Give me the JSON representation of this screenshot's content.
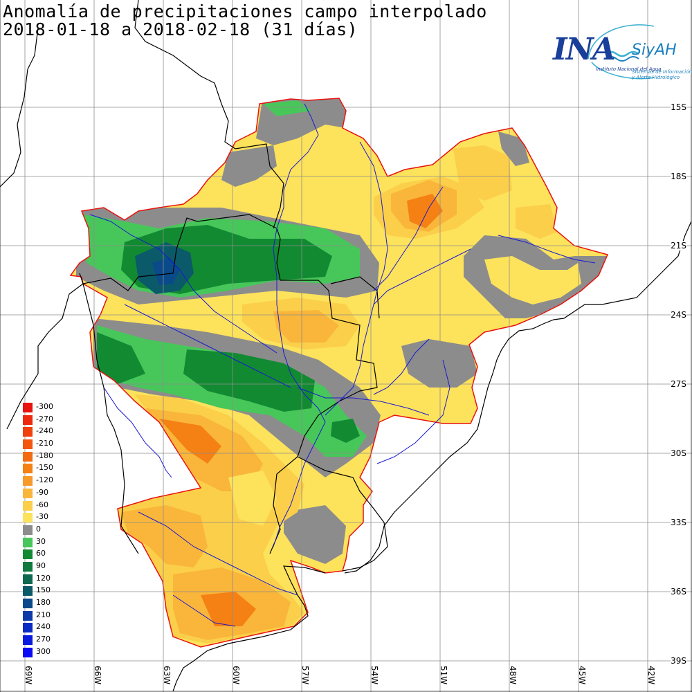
{
  "title": {
    "line1": "Anomalía de precipitaciones campo interpolado",
    "line2": "2018-01-18 a 2018-02-18 (31 días)"
  },
  "logo": {
    "ina": "INA",
    "siyah": "SiyAH",
    "subtitle1": "Instituto Nacional del Agua",
    "subtitle2": "Sistemas de Información y Alerta Hidrológico"
  },
  "legend": {
    "items": [
      {
        "label": "-300",
        "color": "#e8120e"
      },
      {
        "label": "-270",
        "color": "#ee2a0e"
      },
      {
        "label": "-240",
        "color": "#f0400e"
      },
      {
        "label": "-210",
        "color": "#f2560f"
      },
      {
        "label": "-180",
        "color": "#f36b10"
      },
      {
        "label": "-150",
        "color": "#f58014"
      },
      {
        "label": "-120",
        "color": "#f79a2a"
      },
      {
        "label": "-90",
        "color": "#f9b63a"
      },
      {
        "label": "-60",
        "color": "#fbcf4a"
      },
      {
        "label": "-30",
        "color": "#fde25c"
      },
      {
        "label": "0",
        "color": "#8c8c8c"
      },
      {
        "label": "30",
        "color": "#47c75a"
      },
      {
        "label": "60",
        "color": "#128a32"
      },
      {
        "label": "90",
        "color": "#0f7a40"
      },
      {
        "label": "120",
        "color": "#0d6a50"
      },
      {
        "label": "150",
        "color": "#0b5a6a"
      },
      {
        "label": "180",
        "color": "#0a4a8a"
      },
      {
        "label": "210",
        "color": "#0a3aa8"
      },
      {
        "label": "240",
        "color": "#0a2ac4"
      },
      {
        "label": "270",
        "color": "#0a1ade"
      },
      {
        "label": "300",
        "color": "#0a0af4"
      }
    ]
  },
  "latitudes": [
    "15S",
    "18S",
    "21S",
    "24S",
    "27S",
    "30S",
    "33S",
    "36S",
    "39S"
  ],
  "longitudes": [
    "69W",
    "66W",
    "63W",
    "60W",
    "57W",
    "54W",
    "51W",
    "48W",
    "45W",
    "42W"
  ],
  "colors": {
    "neg30": "#fde25c",
    "neg60": "#fbcf4a",
    "neg90": "#f9b63a",
    "neg120": "#f79a2a",
    "neg150": "#f58014",
    "zero": "#8c8c8c",
    "pos30": "#47c75a",
    "pos60": "#128a32",
    "pos90": "#0f7a40",
    "pos150": "#0b5a6a",
    "pos180": "#0a4a8a",
    "outline": "#e8120e",
    "river": "#1a1ad0"
  }
}
